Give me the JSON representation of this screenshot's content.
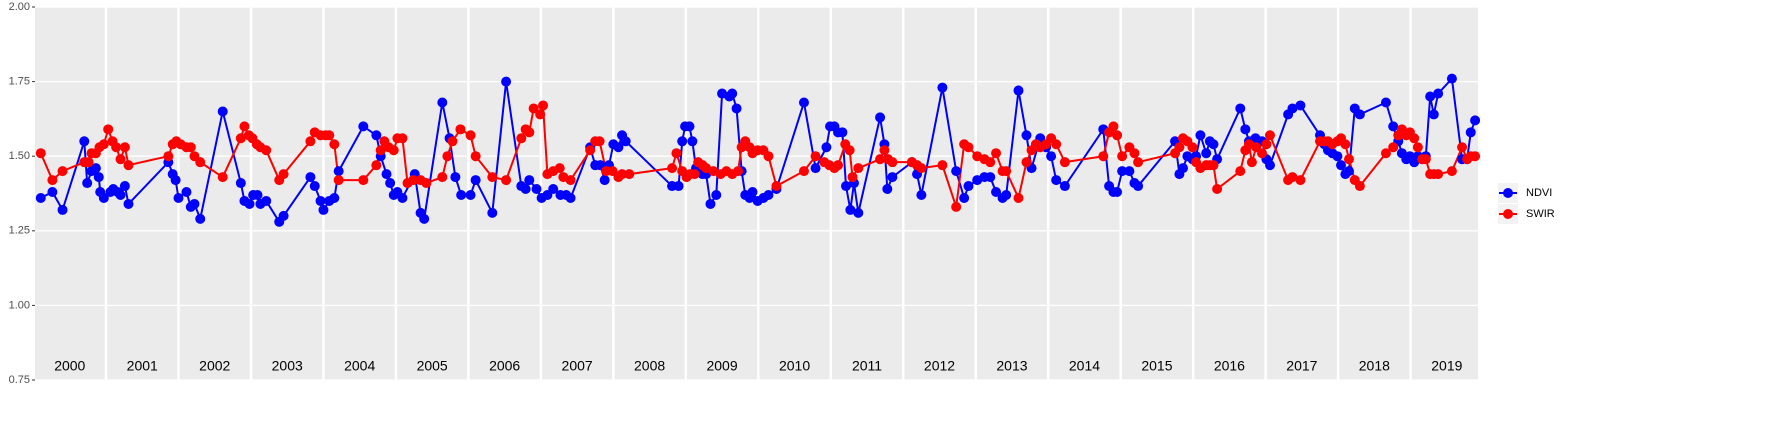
{
  "chart_data": {
    "type": "line",
    "xlim": [
      2000.02,
      2019.93
    ],
    "ylim": [
      0.75,
      2.0
    ],
    "yticks": [
      {
        "value": 0.75,
        "label": "0.75"
      },
      {
        "value": 1.0,
        "label": "1.00"
      },
      {
        "value": 1.25,
        "label": "1.25"
      },
      {
        "value": 1.5,
        "label": "1.50"
      },
      {
        "value": 1.75,
        "label": "1.75"
      },
      {
        "value": 2.0,
        "label": "2.00"
      }
    ],
    "xticks": [
      {
        "value": 2000.5,
        "label": "2000"
      },
      {
        "value": 2001.5,
        "label": "2001"
      },
      {
        "value": 2002.5,
        "label": "2002"
      },
      {
        "value": 2003.5,
        "label": "2003"
      },
      {
        "value": 2004.5,
        "label": "2004"
      },
      {
        "value": 2005.5,
        "label": "2005"
      },
      {
        "value": 2006.5,
        "label": "2006"
      },
      {
        "value": 2007.5,
        "label": "2007"
      },
      {
        "value": 2008.5,
        "label": "2008"
      },
      {
        "value": 2009.5,
        "label": "2009"
      },
      {
        "value": 2010.5,
        "label": "2010"
      },
      {
        "value": 2011.5,
        "label": "2011"
      },
      {
        "value": 2012.5,
        "label": "2012"
      },
      {
        "value": 2013.5,
        "label": "2013"
      },
      {
        "value": 2014.5,
        "label": "2014"
      },
      {
        "value": 2015.5,
        "label": "2015"
      },
      {
        "value": 2016.5,
        "label": "2016"
      },
      {
        "value": 2017.5,
        "label": "2017"
      },
      {
        "value": 2018.5,
        "label": "2018"
      },
      {
        "value": 2019.5,
        "label": "2019"
      }
    ],
    "vgrid": [
      2001,
      2002,
      2003,
      2004,
      2005,
      2006,
      2007,
      2008,
      2009,
      2010,
      2011,
      2012,
      2013,
      2014,
      2015,
      2016,
      2017,
      2018,
      2019
    ],
    "grid": true,
    "legend": "right",
    "series": [
      {
        "name": "NDVI",
        "color": "#0000ff",
        "x": [
          2000.1,
          2000.26,
          2000.4,
          2000.7,
          2000.74,
          2000.8,
          2000.86,
          2000.9,
          2000.92,
          2000.97,
          2001.06,
          2001.1,
          2001.16,
          2001.2,
          2001.26,
          2001.31,
          2001.86,
          2001.92,
          2001.96,
          2002.0,
          2002.11,
          2002.17,
          2002.22,
          2002.3,
          2002.61,
          2002.86,
          2002.91,
          2002.98,
          2003.03,
          2003.09,
          2003.13,
          2003.21,
          2003.39,
          2003.45,
          2003.82,
          2003.88,
          2003.96,
          2004.0,
          2004.08,
          2004.15,
          2004.21,
          2004.55,
          2004.73,
          2004.79,
          2004.87,
          2004.92,
          2004.97,
          2005.02,
          2005.09,
          2005.26,
          2005.34,
          2005.39,
          2005.64,
          2005.74,
          2005.82,
          2005.9,
          2006.03,
          2006.1,
          2006.33,
          2006.52,
          2006.73,
          2006.79,
          2006.84,
          2006.94,
          2007.01,
          2007.09,
          2007.17,
          2007.27,
          2007.35,
          2007.41,
          2007.68,
          2007.75,
          2007.82,
          2007.88,
          2007.94,
          2008.0,
          2008.07,
          2008.12,
          2008.17,
          2008.81,
          2008.9,
          2008.95,
          2008.99,
          2009.05,
          2009.09,
          2009.14,
          2009.23,
          2009.28,
          2009.34,
          2009.42,
          2009.5,
          2009.6,
          2009.64,
          2009.7,
          2009.77,
          2009.82,
          2009.88,
          2009.92,
          2009.99,
          2010.07,
          2010.14,
          2010.25,
          2010.63,
          2010.79,
          2010.94,
          2010.99,
          2011.05,
          2011.1,
          2011.16,
          2011.21,
          2011.27,
          2011.32,
          2011.38,
          2011.68,
          2011.74,
          2011.78,
          2011.85,
          2012.12,
          2012.19,
          2012.25,
          2012.54,
          2012.73,
          2012.84,
          2012.9,
          2013.02,
          2013.12,
          2013.2,
          2013.28,
          2013.37,
          2013.42,
          2013.59,
          2013.7,
          2013.77,
          2013.89,
          2013.97,
          2014.04,
          2014.11,
          2014.23,
          2014.76,
          2014.84,
          2014.9,
          2014.95,
          2015.02,
          2015.12,
          2015.19,
          2015.24,
          2015.75,
          2015.81,
          2015.86,
          2015.92,
          2015.99,
          2016.04,
          2016.1,
          2016.18,
          2016.23,
          2016.28,
          2016.33,
          2016.65,
          2016.72,
          2016.77,
          2016.86,
          2016.9,
          2016.95,
          2017.01,
          2017.06,
          2017.31,
          2017.37,
          2017.48,
          2017.75,
          2017.81,
          2017.86,
          2017.92,
          2017.99,
          2018.04,
          2018.1,
          2018.15,
          2018.23,
          2018.3,
          2018.66,
          2018.76,
          2018.83,
          2018.88,
          2018.94,
          2018.99,
          2019.05,
          2019.1,
          2019.16,
          2019.21,
          2019.27,
          2019.32,
          2019.38,
          2019.57,
          2019.71,
          2019.78,
          2019.83,
          2019.89
        ],
        "values": [
          1.36,
          1.38,
          1.32,
          1.55,
          1.41,
          1.45,
          1.46,
          1.43,
          1.38,
          1.36,
          1.38,
          1.39,
          1.38,
          1.37,
          1.4,
          1.34,
          1.48,
          1.44,
          1.42,
          1.36,
          1.38,
          1.33,
          1.34,
          1.29,
          1.65,
          1.41,
          1.35,
          1.34,
          1.37,
          1.37,
          1.34,
          1.35,
          1.28,
          1.3,
          1.43,
          1.4,
          1.35,
          1.32,
          1.35,
          1.36,
          1.45,
          1.6,
          1.57,
          1.5,
          1.44,
          1.41,
          1.37,
          1.38,
          1.36,
          1.44,
          1.31,
          1.29,
          1.68,
          1.56,
          1.43,
          1.37,
          1.37,
          1.42,
          1.31,
          1.75,
          1.4,
          1.39,
          1.42,
          1.39,
          1.36,
          1.37,
          1.39,
          1.37,
          1.37,
          1.36,
          1.53,
          1.47,
          1.47,
          1.42,
          1.47,
          1.54,
          1.53,
          1.57,
          1.55,
          1.4,
          1.4,
          1.55,
          1.6,
          1.6,
          1.55,
          1.46,
          1.44,
          1.44,
          1.34,
          1.37,
          1.71,
          1.7,
          1.71,
          1.66,
          1.45,
          1.37,
          1.36,
          1.38,
          1.35,
          1.36,
          1.37,
          1.39,
          1.68,
          1.46,
          1.53,
          1.6,
          1.6,
          1.58,
          1.58,
          1.4,
          1.32,
          1.41,
          1.31,
          1.63,
          1.54,
          1.39,
          1.43,
          1.48,
          1.44,
          1.37,
          1.73,
          1.45,
          1.36,
          1.4,
          1.42,
          1.43,
          1.43,
          1.38,
          1.36,
          1.37,
          1.72,
          1.57,
          1.46,
          1.56,
          1.53,
          1.5,
          1.42,
          1.4,
          1.59,
          1.4,
          1.38,
          1.38,
          1.45,
          1.45,
          1.41,
          1.4,
          1.55,
          1.44,
          1.46,
          1.5,
          1.49,
          1.5,
          1.57,
          1.51,
          1.55,
          1.54,
          1.49,
          1.66,
          1.59,
          1.55,
          1.56,
          1.55,
          1.55,
          1.49,
          1.47,
          1.64,
          1.66,
          1.67,
          1.57,
          1.54,
          1.52,
          1.51,
          1.5,
          1.47,
          1.44,
          1.45,
          1.66,
          1.64,
          1.68,
          1.6,
          1.55,
          1.51,
          1.49,
          1.5,
          1.48,
          1.5,
          1.49,
          1.5,
          1.7,
          1.64,
          1.71,
          1.76,
          1.49,
          1.49,
          1.58,
          1.62
        ]
      },
      {
        "name": "SWIR",
        "color": "#ff0000",
        "x": [
          2000.1,
          2000.26,
          2000.4,
          2000.7,
          2000.76,
          2000.8,
          2000.86,
          2000.91,
          2000.97,
          2001.03,
          2001.09,
          2001.14,
          2001.2,
          2001.26,
          2001.31,
          2001.86,
          2001.92,
          2001.97,
          2002.03,
          2002.11,
          2002.17,
          2002.22,
          2002.3,
          2002.61,
          2002.86,
          2002.91,
          2002.97,
          2003.02,
          2003.08,
          2003.13,
          2003.21,
          2003.39,
          2003.45,
          2003.82,
          2003.88,
          2003.96,
          2004.03,
          2004.08,
          2004.15,
          2004.21,
          2004.55,
          2004.73,
          2004.79,
          2004.84,
          2004.9,
          2004.97,
          2005.02,
          2005.09,
          2005.16,
          2005.24,
          2005.34,
          2005.42,
          2005.64,
          2005.71,
          2005.78,
          2005.89,
          2006.03,
          2006.1,
          2006.33,
          2006.52,
          2006.73,
          2006.79,
          2006.84,
          2006.9,
          2006.99,
          2007.03,
          2007.09,
          2007.17,
          2007.26,
          2007.31,
          2007.41,
          2007.68,
          2007.75,
          2007.81,
          2007.9,
          2007.99,
          2008.07,
          2008.12,
          2008.22,
          2008.81,
          2008.87,
          2008.95,
          2009.01,
          2009.06,
          2009.12,
          2009.17,
          2009.23,
          2009.28,
          2009.38,
          2009.48,
          2009.56,
          2009.64,
          2009.72,
          2009.77,
          2009.82,
          2009.88,
          2009.92,
          2009.99,
          2010.07,
          2010.14,
          2010.25,
          2010.63,
          2010.79,
          2010.91,
          2010.98,
          2011.05,
          2011.1,
          2011.2,
          2011.26,
          2011.3,
          2011.38,
          2011.68,
          2011.74,
          2011.79,
          2011.85,
          2012.12,
          2012.19,
          2012.25,
          2012.54,
          2012.73,
          2012.84,
          2012.9,
          2013.02,
          2013.12,
          2013.2,
          2013.28,
          2013.37,
          2013.42,
          2013.59,
          2013.7,
          2013.77,
          2013.83,
          2013.89,
          2013.97,
          2014.04,
          2014.11,
          2014.23,
          2014.76,
          2014.84,
          2014.9,
          2014.95,
          2015.02,
          2015.12,
          2015.19,
          2015.24,
          2015.75,
          2015.81,
          2015.86,
          2015.92,
          2015.99,
          2016.04,
          2016.1,
          2016.18,
          2016.23,
          2016.28,
          2016.33,
          2016.65,
          2016.72,
          2016.77,
          2016.81,
          2016.87,
          2016.95,
          2017.01,
          2017.06,
          2017.31,
          2017.37,
          2017.48,
          2017.75,
          2017.81,
          2017.86,
          2017.92,
          2017.99,
          2018.04,
          2018.1,
          2018.15,
          2018.23,
          2018.3,
          2018.66,
          2018.76,
          2018.83,
          2018.88,
          2018.94,
          2018.99,
          2019.05,
          2019.1,
          2019.16,
          2019.21,
          2019.27,
          2019.32,
          2019.38,
          2019.57,
          2019.71,
          2019.78,
          2019.83,
          2019.89
        ],
        "values": [
          1.51,
          1.42,
          1.45,
          1.48,
          1.48,
          1.51,
          1.51,
          1.53,
          1.54,
          1.59,
          1.55,
          1.53,
          1.49,
          1.53,
          1.47,
          1.5,
          1.54,
          1.55,
          1.54,
          1.53,
          1.53,
          1.5,
          1.48,
          1.43,
          1.56,
          1.6,
          1.57,
          1.56,
          1.54,
          1.53,
          1.52,
          1.42,
          1.44,
          1.55,
          1.58,
          1.57,
          1.57,
          1.57,
          1.54,
          1.42,
          1.42,
          1.47,
          1.52,
          1.55,
          1.53,
          1.52,
          1.56,
          1.56,
          1.41,
          1.42,
          1.42,
          1.41,
          1.43,
          1.5,
          1.55,
          1.59,
          1.57,
          1.5,
          1.43,
          1.42,
          1.56,
          1.59,
          1.58,
          1.66,
          1.64,
          1.67,
          1.44,
          1.45,
          1.46,
          1.43,
          1.42,
          1.52,
          1.55,
          1.55,
          1.45,
          1.45,
          1.43,
          1.44,
          1.44,
          1.46,
          1.51,
          1.45,
          1.43,
          1.44,
          1.44,
          1.48,
          1.47,
          1.46,
          1.45,
          1.44,
          1.45,
          1.44,
          1.45,
          1.53,
          1.55,
          1.53,
          1.51,
          1.52,
          1.52,
          1.5,
          1.4,
          1.45,
          1.5,
          1.48,
          1.47,
          1.46,
          1.47,
          1.54,
          1.52,
          1.43,
          1.46,
          1.49,
          1.52,
          1.49,
          1.48,
          1.48,
          1.47,
          1.46,
          1.47,
          1.33,
          1.54,
          1.53,
          1.5,
          1.49,
          1.48,
          1.51,
          1.45,
          1.45,
          1.36,
          1.48,
          1.52,
          1.54,
          1.53,
          1.54,
          1.56,
          1.54,
          1.48,
          1.5,
          1.58,
          1.6,
          1.57,
          1.5,
          1.53,
          1.51,
          1.48,
          1.51,
          1.53,
          1.56,
          1.55,
          1.53,
          1.48,
          1.46,
          1.47,
          1.47,
          1.47,
          1.39,
          1.45,
          1.52,
          1.54,
          1.48,
          1.53,
          1.51,
          1.54,
          1.57,
          1.42,
          1.43,
          1.42,
          1.55,
          1.55,
          1.55,
          1.54,
          1.55,
          1.56,
          1.54,
          1.49,
          1.42,
          1.4,
          1.51,
          1.53,
          1.57,
          1.59,
          1.57,
          1.58,
          1.56,
          1.53,
          1.49,
          1.49,
          1.44,
          1.44,
          1.44,
          1.45,
          1.53,
          1.49,
          1.5,
          1.5
        ]
      }
    ]
  }
}
